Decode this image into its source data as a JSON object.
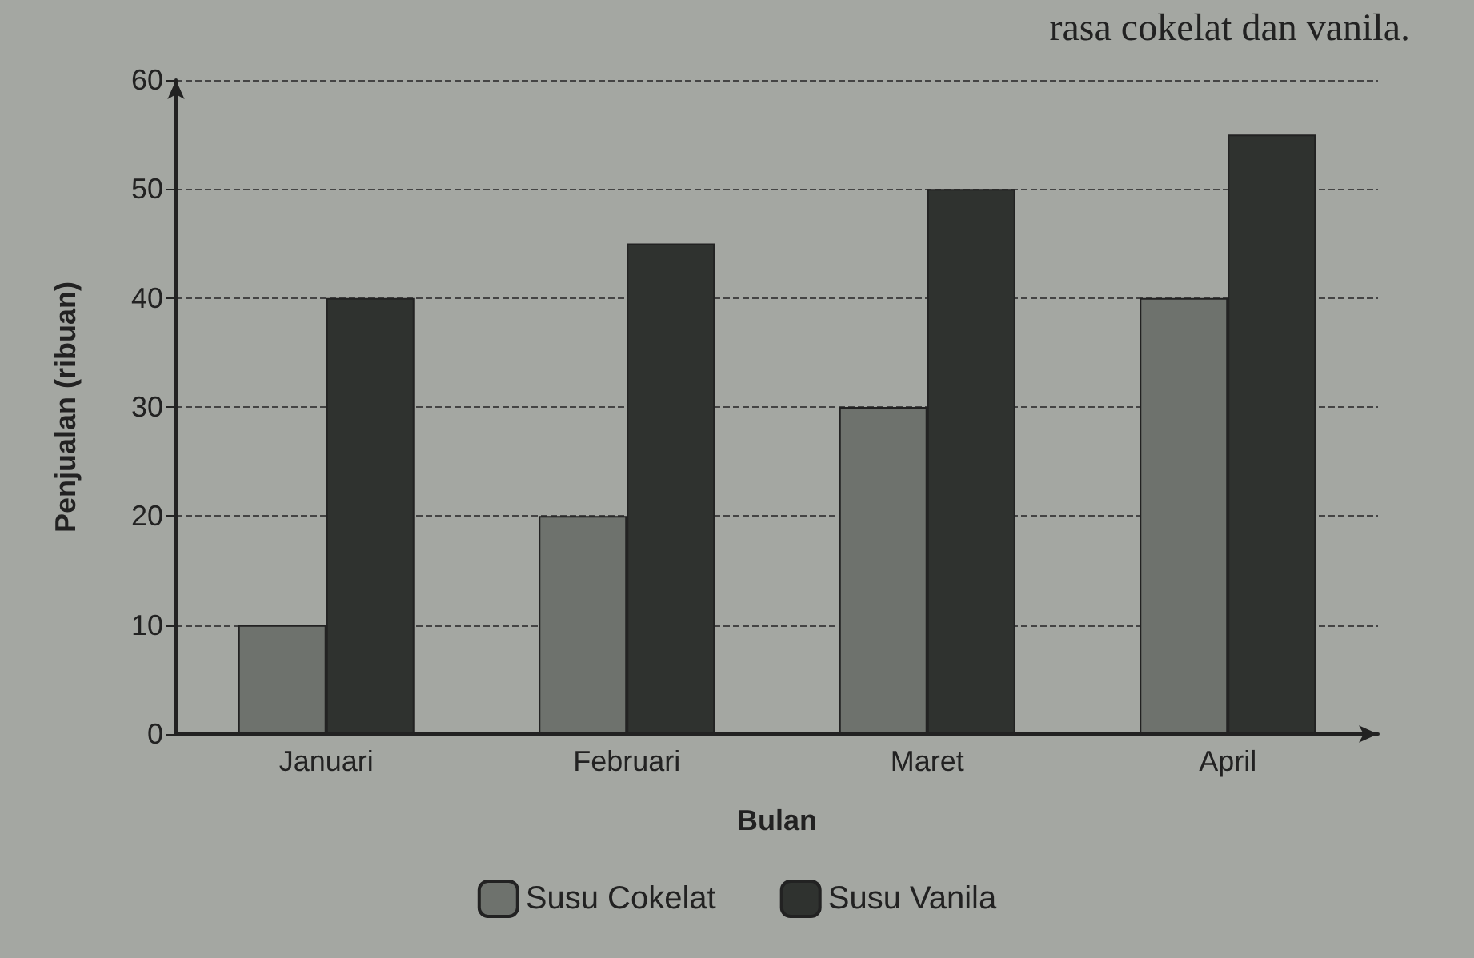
{
  "chart_data": {
    "type": "bar",
    "xlabel": "Bulan",
    "ylabel": "Penjualan (ribuan)",
    "annotations": [
      "rasa cokelat dan vanila."
    ],
    "categories": [
      "Januari",
      "Februari",
      "Maret",
      "April"
    ],
    "series": [
      {
        "name": "Susu Cokelat",
        "color": "#6e726d",
        "values": [
          10,
          20,
          30,
          40
        ]
      },
      {
        "name": "Susu Vanila",
        "color": "#2f322f",
        "values": [
          40,
          45,
          50,
          55
        ]
      }
    ],
    "ylim": [
      0,
      60
    ],
    "yticks": [
      0,
      10,
      20,
      30,
      40,
      50,
      60
    ],
    "grid": "y",
    "legend": "bottom"
  }
}
